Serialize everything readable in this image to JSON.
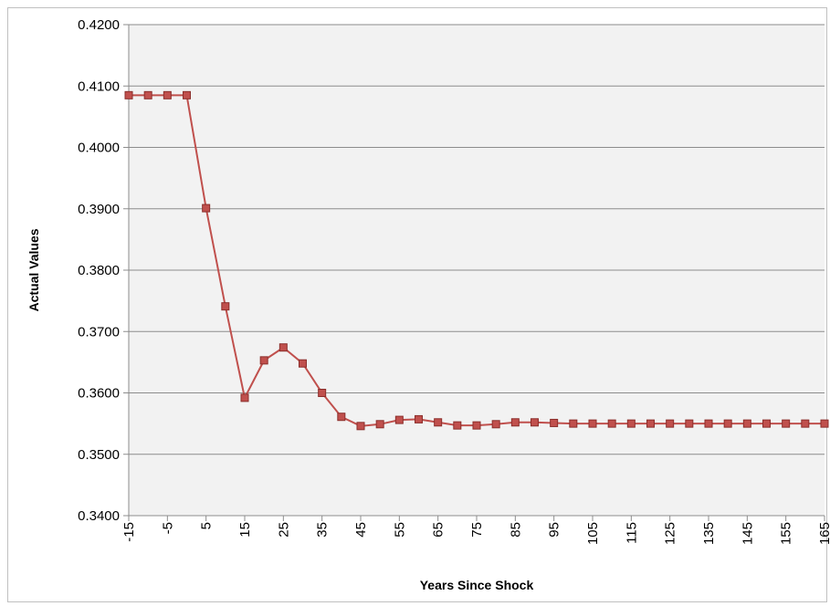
{
  "chart_data": {
    "type": "line",
    "title": "",
    "xlabel": "Years Since Shock",
    "ylabel": "Actual Values",
    "ylim": [
      0.34,
      0.42
    ],
    "y_ticks": [
      "0.3400",
      "0.3500",
      "0.3600",
      "0.3700",
      "0.3800",
      "0.3900",
      "0.4000",
      "0.4100",
      "0.4200"
    ],
    "x_ticks": [
      "-15",
      "-5",
      "5",
      "15",
      "25",
      "35",
      "45",
      "55",
      "65",
      "75",
      "85",
      "95",
      "105",
      "115",
      "125",
      "135",
      "145",
      "155",
      "165"
    ],
    "grid": "horizontal",
    "legend": "none",
    "colors": {
      "line": "#c0504d",
      "marker_fill": "#c0504d",
      "marker_stroke": "#8b2e2b",
      "plot_bg": "#f2f2f2"
    },
    "series": [
      {
        "x": [
          -15,
          -10,
          -5,
          0,
          5,
          10,
          15,
          20,
          25,
          30,
          35,
          40,
          45,
          50,
          55,
          60,
          65,
          70,
          75,
          80,
          85,
          90,
          95,
          100,
          105,
          110,
          115,
          120,
          125,
          130,
          135,
          140,
          145,
          150,
          155,
          160,
          165
        ],
        "values": [
          0.4085,
          0.4085,
          0.4085,
          0.4085,
          0.3901,
          0.3741,
          0.3592,
          0.3653,
          0.3674,
          0.3648,
          0.36,
          0.3561,
          0.3546,
          0.3549,
          0.3556,
          0.3557,
          0.3552,
          0.3547,
          0.3547,
          0.3549,
          0.3552,
          0.3552,
          0.3551,
          0.355,
          0.355,
          0.355,
          0.355,
          0.355,
          0.355,
          0.355,
          0.355,
          0.355,
          0.355,
          0.355,
          0.355,
          0.355,
          0.355
        ]
      }
    ]
  }
}
